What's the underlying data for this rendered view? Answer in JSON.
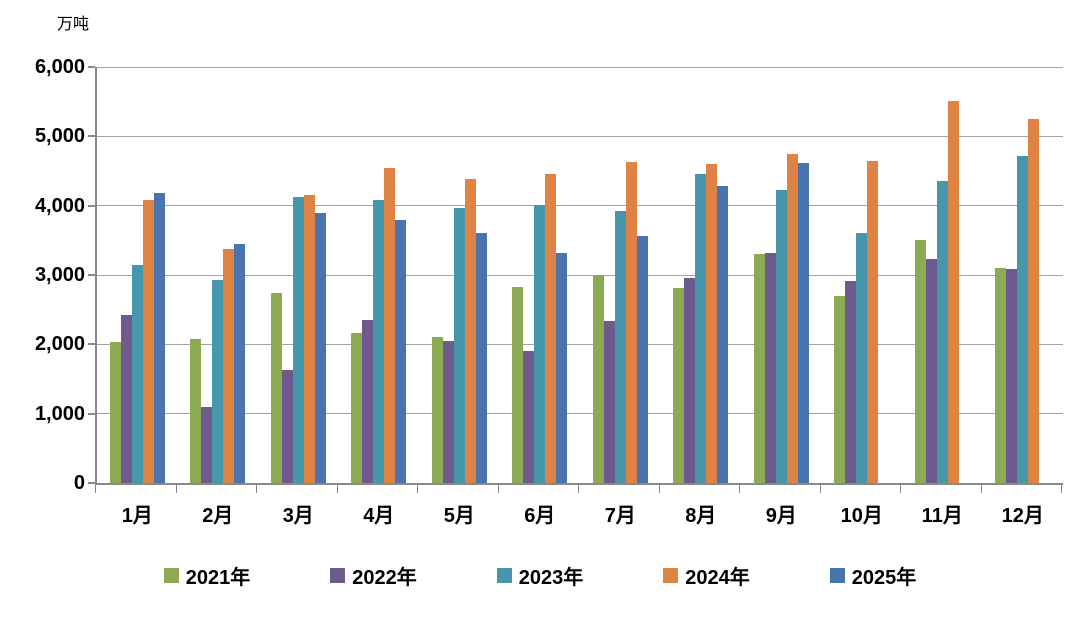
{
  "chart": {
    "unit_label": "万吨",
    "y_axis": {
      "tick_labels": [
        "6,000",
        "5,000",
        "4,000",
        "3,000",
        "2,000",
        "1,000",
        "0"
      ],
      "min": 0,
      "max": 6000,
      "step": 1000
    },
    "colors": {
      "grid": "#a3a3a3",
      "axis": "#898989",
      "background": "#ffffff"
    }
  },
  "chart_data": {
    "type": "bar",
    "title": "",
    "ylabel": "万吨",
    "xlabel": "",
    "ylim": [
      0,
      6000
    ],
    "ystep": 1000,
    "grid": true,
    "legend_position": "bottom",
    "categories": [
      "1月",
      "2月",
      "3月",
      "4月",
      "5月",
      "6月",
      "7月",
      "8月",
      "9月",
      "10月",
      "11月",
      "12月"
    ],
    "series": [
      {
        "name": "2021年",
        "color": "#8CA953",
        "values": [
          2030,
          2070,
          2740,
          2170,
          2110,
          2830,
          3000,
          2810,
          3300,
          2700,
          3500,
          3100
        ]
      },
      {
        "name": "2022年",
        "color": "#6E5A8C",
        "values": [
          2420,
          1100,
          1630,
          2350,
          2050,
          1900,
          2340,
          2950,
          3320,
          2920,
          3230,
          3080
        ]
      },
      {
        "name": "2023年",
        "color": "#4697AC",
        "values": [
          3150,
          2930,
          4120,
          4080,
          3970,
          4010,
          3930,
          4450,
          4220,
          3600,
          4350,
          4720
        ]
      },
      {
        "name": "2024年",
        "color": "#DE8343",
        "values": [
          4080,
          3380,
          4150,
          4550,
          4390,
          4460,
          4630,
          4600,
          4750,
          4640,
          5510,
          5250
        ]
      },
      {
        "name": "2025年",
        "color": "#4974AC",
        "values": [
          4180,
          3450,
          3890,
          3790,
          3610,
          3320,
          3560,
          4280,
          4610,
          null,
          null,
          null
        ]
      }
    ]
  }
}
